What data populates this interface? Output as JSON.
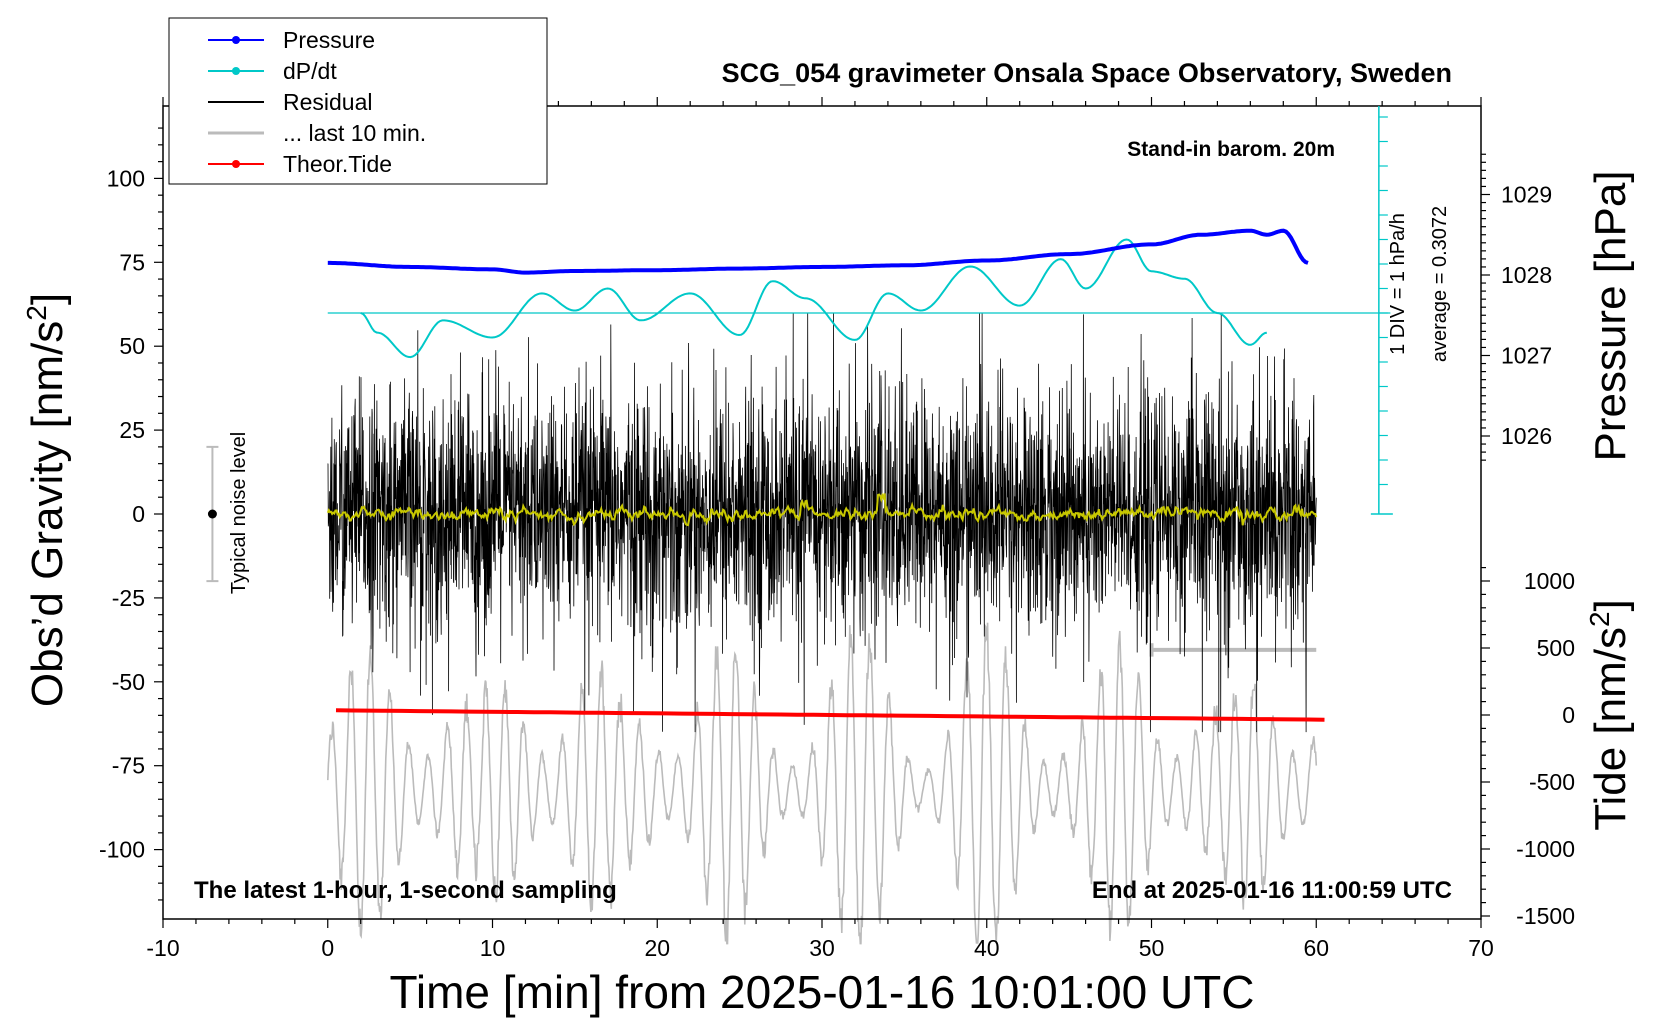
{
  "chart_data": {
    "type": "line",
    "title": "SCG_054 gravimeter Onsala Space Observatory, Sweden",
    "subtitle_left": "The latest 1-hour, 1-second sampling",
    "subtitle_right": "End at 2025-01-16 11:00:59 UTC",
    "baro_note": "Stand-in barom. 20m",
    "xlabel": "Time [min] from 2025-01-16 10:01:00 UTC",
    "ylabel_left": "Obs’d Gravity [nm/s",
    "ylabel_left_sup": "2",
    "ylabel_left_end": "]",
    "ylabel_pressure": "Pressure [hPa]",
    "ylabel_tide": "Tide [nm/s",
    "ylabel_tide_sup": "2",
    "ylabel_tide_end": "]",
    "xlim": [
      -10,
      70
    ],
    "ylim_gravity": [
      -120,
      120
    ],
    "x_ticks": [
      "-10",
      "0",
      "10",
      "20",
      "30",
      "40",
      "50",
      "60",
      "70"
    ],
    "y_ticks_gravity": [
      "-100",
      "-75",
      "-50",
      "-25",
      "0",
      "25",
      "50",
      "75",
      "100"
    ],
    "y_ticks_pressure": [
      "1026",
      "1027",
      "1028",
      "1029"
    ],
    "y_ticks_tide": [
      "-1500",
      "-1000",
      "-500",
      "0",
      "500",
      "1000"
    ],
    "dpdt_scale_label": "1 DIV = 1 hPa/h",
    "dpdt_average_label": "average = 0.3072",
    "noise_label": "Typical noise level",
    "legend": [
      {
        "label": "Pressure",
        "color": "#0000ff",
        "marker": true
      },
      {
        "label": "dP/dt",
        "color": "#00c8c8",
        "marker": true
      },
      {
        "label": "Residual",
        "color": "#000000",
        "marker": false
      },
      {
        "label": "... last 10 min.",
        "color": "#bbbbbb",
        "marker": false
      },
      {
        "label": "Theor.Tide",
        "color": "#ff0000",
        "marker": true
      }
    ],
    "series": [
      {
        "name": "Pressure",
        "unit": "hPa",
        "x": [
          0,
          5,
          10,
          12,
          15,
          20,
          25,
          30,
          35,
          40,
          45,
          50,
          53,
          56,
          57,
          58,
          59.5
        ],
        "values": [
          1028.15,
          1028.1,
          1028.07,
          1028.03,
          1028.05,
          1028.06,
          1028.08,
          1028.1,
          1028.12,
          1028.18,
          1028.26,
          1028.38,
          1028.5,
          1028.55,
          1028.5,
          1028.55,
          1028.15
        ]
      },
      {
        "name": "dP/dt",
        "unit": "DIV",
        "x": [
          2,
          3,
          5,
          7,
          10,
          13,
          15,
          17,
          19,
          22,
          25,
          27,
          29,
          32,
          34,
          36,
          39,
          42,
          44.5,
          46,
          48.5,
          50,
          52,
          54,
          56,
          57
        ],
        "values": [
          0.0,
          -0.8,
          -1.8,
          -0.3,
          -1.0,
          0.8,
          0.1,
          1.0,
          -0.3,
          0.8,
          -0.9,
          1.3,
          0.6,
          -1.1,
          0.8,
          0.1,
          1.9,
          0.3,
          2.2,
          1.0,
          3.0,
          1.7,
          1.4,
          0.0,
          -1.3,
          -0.8
        ]
      },
      {
        "name": "Residual",
        "unit": "nm/s2",
        "x_range": [
          0,
          60
        ],
        "rms_noise": 18,
        "envelope": [
          -65,
          60
        ]
      },
      {
        "name": "... last 10 min.",
        "unit": "nm/s2",
        "x_range": [
          50,
          60
        ]
      },
      {
        "name": "Smoothed residual",
        "unit": "nm/s2",
        "x_range": [
          0,
          60
        ],
        "values_approx": 0
      },
      {
        "name": "Theor.Tide",
        "unit": "nm/s2",
        "x": [
          0.5,
          60.5
        ],
        "values": [
          35,
          -35
        ]
      }
    ],
    "noise_level": {
      "x": -7,
      "center": 0,
      "half_range": 20
    },
    "colors": {
      "pressure": "#0000ff",
      "dpdt": "#00c8c8",
      "residual": "#000000",
      "last10": "#bbbbbb",
      "smooth": "#c8c800",
      "tide": "#ff0000",
      "axis": "#000000"
    }
  }
}
